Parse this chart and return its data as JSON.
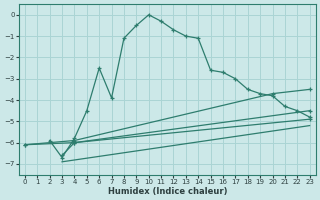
{
  "xlabel": "Humidex (Indice chaleur)",
  "background_color": "#cce8e8",
  "grid_color": "#aad4d4",
  "line_color": "#2e7d6e",
  "xlim": [
    -0.5,
    23.5
  ],
  "ylim": [
    -7.5,
    0.5
  ],
  "xticks": [
    0,
    1,
    2,
    3,
    4,
    5,
    6,
    7,
    8,
    9,
    10,
    11,
    12,
    13,
    14,
    15,
    16,
    17,
    18,
    19,
    20,
    21,
    22,
    23
  ],
  "yticks": [
    0,
    -1,
    -2,
    -3,
    -4,
    -5,
    -6,
    -7
  ],
  "curve_x": [
    2,
    3,
    4,
    5,
    6,
    7,
    8,
    9,
    10,
    11,
    12,
    13,
    14,
    15,
    16,
    17,
    18,
    19,
    20,
    21,
    22,
    23
  ],
  "curve_y": [
    -5.9,
    -6.7,
    -5.8,
    -4.5,
    -2.5,
    -3.9,
    -1.1,
    -0.5,
    0.0,
    -0.3,
    -0.7,
    -1.0,
    -1.1,
    -2.6,
    -2.7,
    -3.0,
    -3.5,
    -3.7,
    -3.8,
    -4.3,
    -4.5,
    -4.8
  ],
  "line1_x": [
    0,
    4,
    20,
    23
  ],
  "line1_y": [
    -6.1,
    -5.9,
    -3.7,
    -3.5
  ],
  "line2_x": [
    0,
    4,
    23
  ],
  "line2_y": [
    -6.1,
    -6.0,
    -4.5
  ],
  "line3_x": [
    3,
    4,
    23
  ],
  "line3_y": [
    -6.6,
    -6.0,
    -4.9
  ],
  "line4_x": [
    3,
    23
  ],
  "line4_y": [
    -6.9,
    -5.2
  ]
}
